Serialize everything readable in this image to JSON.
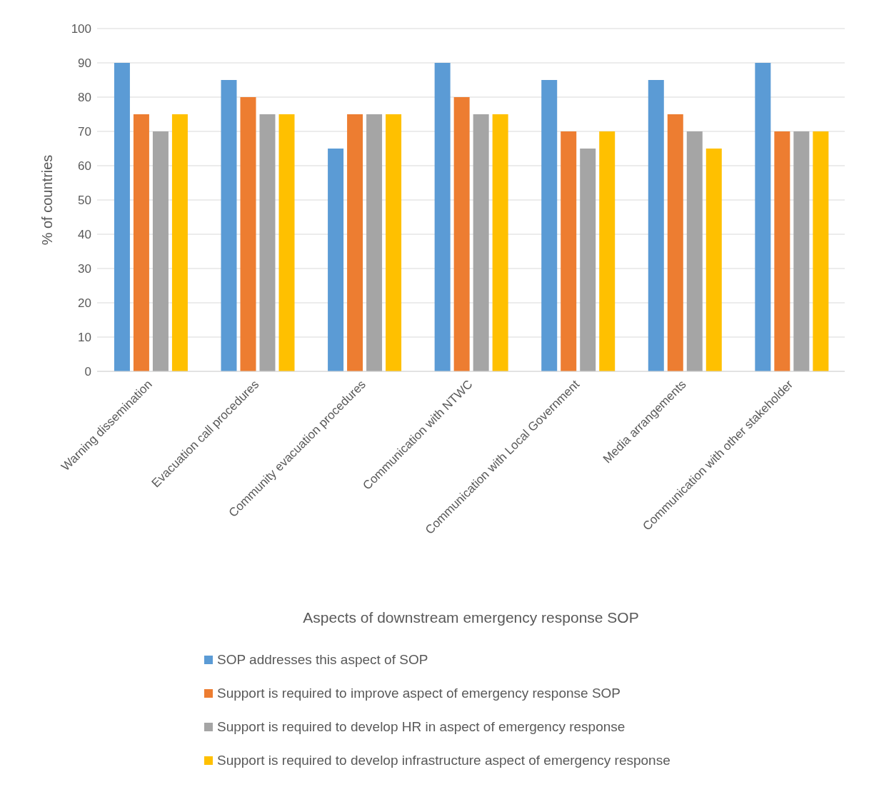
{
  "chart_data": {
    "type": "bar",
    "xlabel": "Aspects of downstream emergency response SOP",
    "ylabel": "% of countries",
    "categories": [
      "Warning dissemination",
      "Evacuation call procedures",
      "Community evacuation procedures",
      "Communication with NTWC",
      "Communication with Local Government",
      "Media arrangements",
      "Communication with other stakeholder"
    ],
    "series": [
      {
        "name": "SOP addresses this aspect of SOP",
        "color": "#5b9bd5",
        "values": [
          90,
          85,
          65,
          90,
          85,
          85,
          90
        ]
      },
      {
        "name": "Support is required to improve aspect of emergency response SOP",
        "color": "#ed7d31",
        "values": [
          75,
          80,
          75,
          80,
          70,
          75,
          70
        ]
      },
      {
        "name": "Support is required to develop HR in aspect of emergency response",
        "color": "#a5a5a5",
        "values": [
          70,
          75,
          75,
          75,
          65,
          70,
          70
        ]
      },
      {
        "name": "Support is required to develop infrastructure aspect of emergency response",
        "color": "#ffc000",
        "values": [
          75,
          75,
          75,
          75,
          70,
          65,
          70
        ]
      }
    ],
    "ylim": [
      0,
      100
    ],
    "yticks": [
      0,
      10,
      20,
      30,
      40,
      50,
      60,
      70,
      80,
      90,
      100
    ],
    "grid": "y",
    "legend": "bottom"
  }
}
